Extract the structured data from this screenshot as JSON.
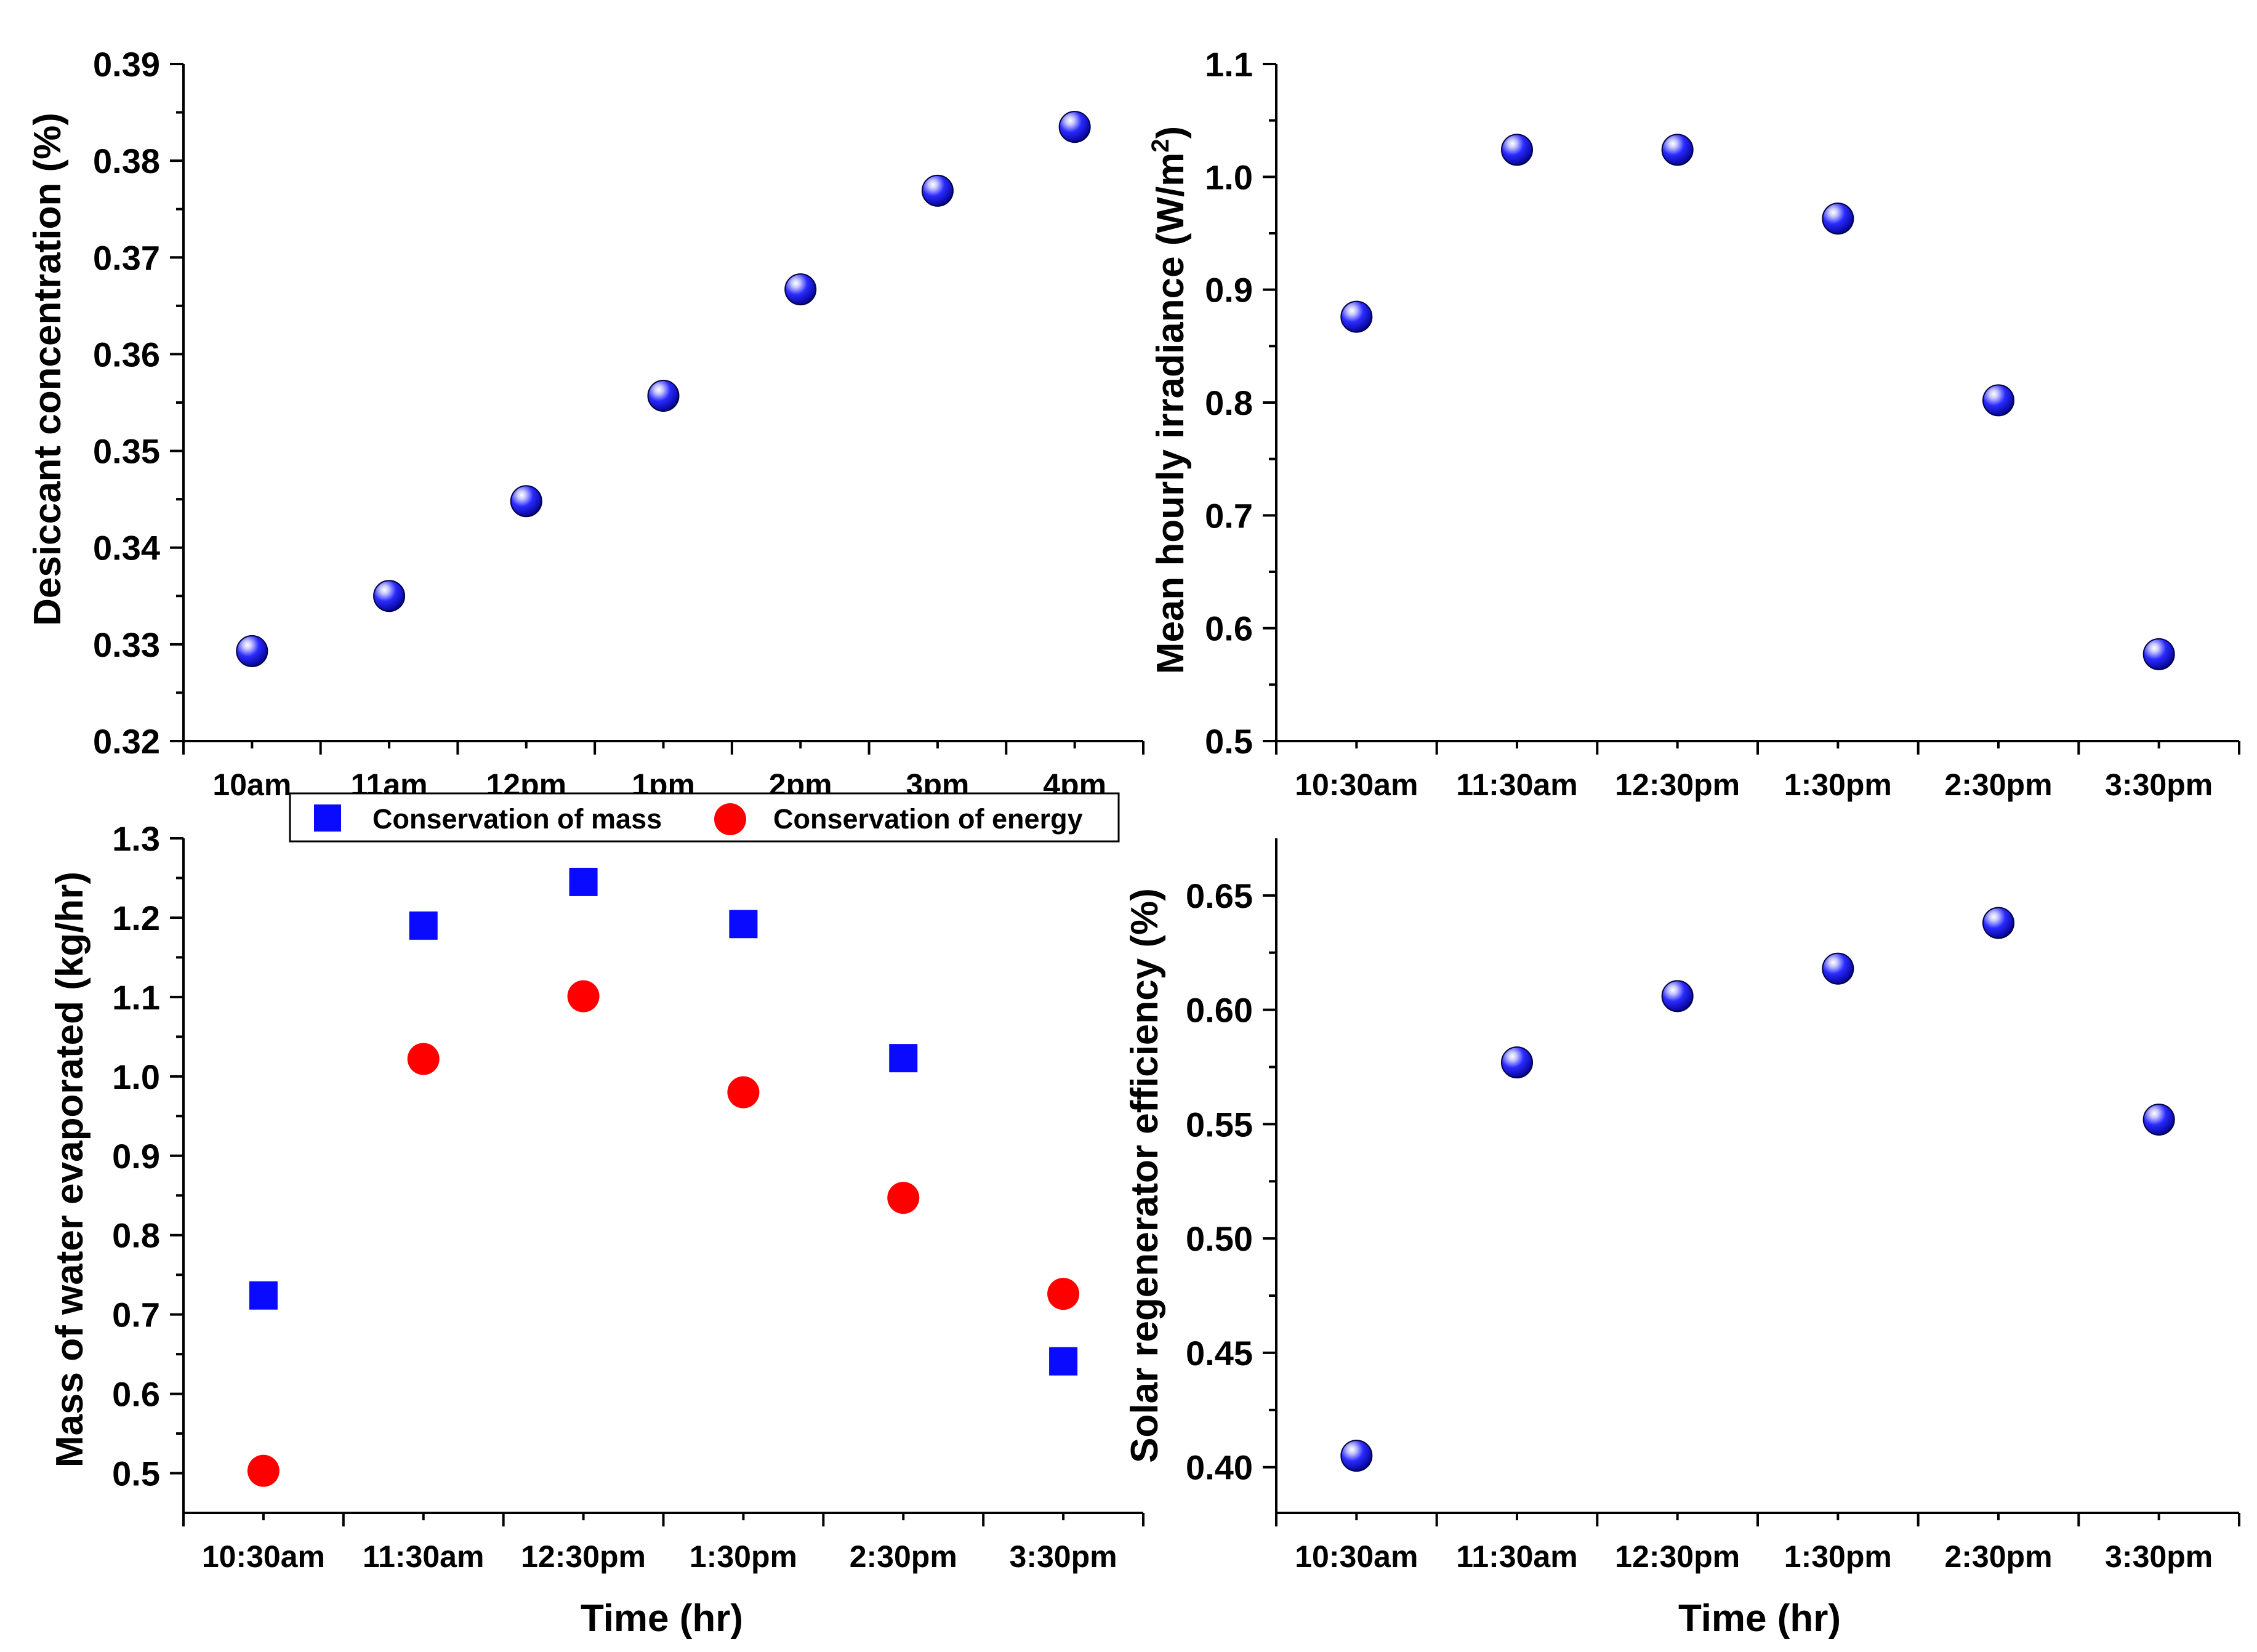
{
  "colors": {
    "marker_blue": "#0a0aff",
    "marker_red": "#ff0000",
    "axis": "#000000",
    "background": "#ffffff"
  },
  "chart_data": [
    {
      "id": "desiccant",
      "type": "scatter",
      "categories": [
        "10am",
        "11am",
        "12pm",
        "1pm",
        "2pm",
        "3pm",
        "4pm"
      ],
      "series": [
        {
          "name": "Desiccant concentration",
          "values": [
            0.3293,
            0.335,
            0.3448,
            0.3557,
            0.3667,
            0.3769,
            0.3835
          ],
          "marker": "sphere",
          "color": "#0a0aff"
        }
      ],
      "ylabel": "Desiccant concentration (%)",
      "xlabel": "",
      "ylim": [
        0.32,
        0.39
      ],
      "yticks": [
        0.32,
        0.33,
        0.34,
        0.35,
        0.36,
        0.37,
        0.38,
        0.39
      ],
      "ytick_labels": [
        "0.32",
        "0.33",
        "0.34",
        "0.35",
        "0.36",
        "0.37",
        "0.38",
        "0.39"
      ]
    },
    {
      "id": "irradiance",
      "type": "scatter",
      "categories": [
        "10:30am",
        "11:30am",
        "12:30pm",
        "1:30pm",
        "2:30pm",
        "3:30pm"
      ],
      "series": [
        {
          "name": "Mean hourly irradiance",
          "values": [
            0.876,
            1.024,
            1.024,
            0.963,
            0.802,
            0.577
          ],
          "marker": "sphere",
          "color": "#0a0aff"
        }
      ],
      "ylabel": "Mean hourly irradiance (W/m",
      "ylabel_sup": "2",
      "ylabel_end": ")",
      "xlabel": "",
      "ylim": [
        0.5,
        1.1
      ],
      "yticks": [
        0.5,
        0.6,
        0.7,
        0.8,
        0.9,
        1.0,
        1.1
      ],
      "ytick_labels": [
        "0.5",
        "0.6",
        "0.7",
        "0.8",
        "0.9",
        "1.0",
        "1.1"
      ]
    },
    {
      "id": "evaporated",
      "type": "scatter",
      "categories": [
        "10:30am",
        "11:30am",
        "12:30pm",
        "1:30pm",
        "2:30pm",
        "3:30pm"
      ],
      "series": [
        {
          "name": "Conservation of mass",
          "values": [
            0.724,
            1.19,
            1.245,
            1.192,
            1.023,
            0.641
          ],
          "marker": "square",
          "color": "#0a0aff"
        },
        {
          "name": "Conservation of energy",
          "values": [
            0.503,
            1.022,
            1.101,
            0.98,
            0.847,
            0.726
          ],
          "marker": "circle",
          "color": "#ff0000"
        }
      ],
      "ylabel": "Mass of water evaporated (kg/hr)",
      "xlabel": "Time (hr)",
      "legend_position": "top",
      "ylim": [
        0.45,
        1.3
      ],
      "yticks": [
        0.5,
        0.6,
        0.7,
        0.8,
        0.9,
        1.0,
        1.1,
        1.2,
        1.3
      ],
      "ytick_labels": [
        "0.5",
        "0.6",
        "0.7",
        "0.8",
        "0.9",
        "1.0",
        "1.1",
        "1.2",
        "1.3"
      ]
    },
    {
      "id": "efficiency",
      "type": "scatter",
      "categories": [
        "10:30am",
        "11:30am",
        "12:30pm",
        "1:30pm",
        "2:30pm",
        "3:30pm"
      ],
      "series": [
        {
          "name": "Solar regenerator efficiency",
          "values": [
            0.405,
            0.577,
            0.606,
            0.618,
            0.638,
            0.552
          ],
          "marker": "sphere",
          "color": "#0a0aff"
        }
      ],
      "ylabel": "Solar regenerator efficiency (%)",
      "xlabel": "Time (hr)",
      "ylim": [
        0.38,
        0.675
      ],
      "yticks": [
        0.4,
        0.45,
        0.5,
        0.55,
        0.6,
        0.65
      ],
      "ytick_labels": [
        "0.40",
        "0.45",
        "0.50",
        "0.55",
        "0.60",
        "0.65"
      ]
    }
  ]
}
